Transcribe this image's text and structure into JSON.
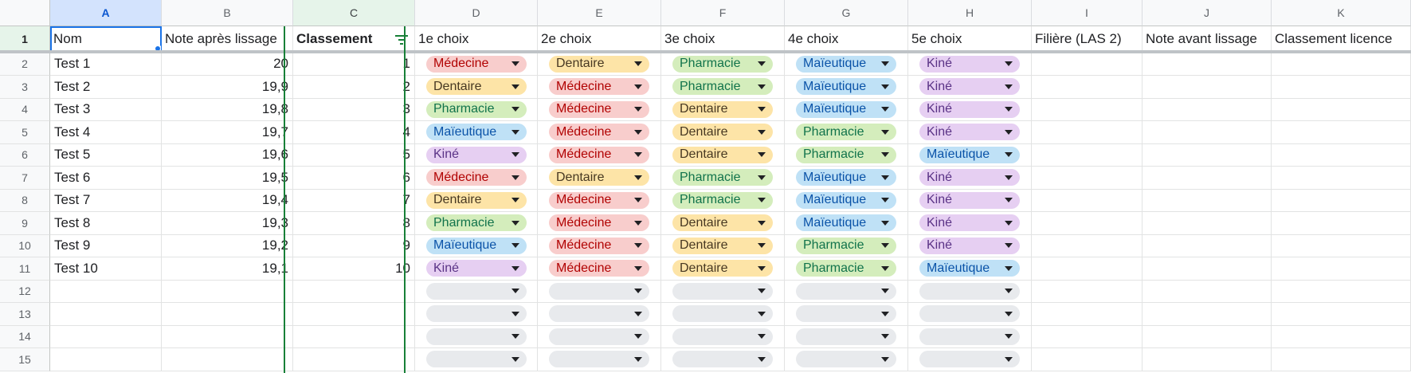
{
  "column_headers": [
    "A",
    "B",
    "C",
    "D",
    "E",
    "F",
    "G",
    "H",
    "I",
    "J",
    "K"
  ],
  "row_numbers": [
    "1",
    "2",
    "3",
    "4",
    "5",
    "6",
    "7",
    "8",
    "9",
    "10",
    "11",
    "12",
    "13",
    "14",
    "15"
  ],
  "header_row": [
    "Nom",
    "Note après lissage",
    "Classement",
    "1e choix",
    "2e choix",
    "3e choix",
    "4e choix",
    "5e choix",
    "Filière (LAS 2)",
    "Note avant lissage",
    "Classement licence"
  ],
  "rows": [
    {
      "nom": "Test 1",
      "note": "20",
      "classement": "1",
      "choix": [
        "Médecine",
        "Dentaire",
        "Pharmacie",
        "Maïeutique",
        "Kiné"
      ]
    },
    {
      "nom": "Test 2",
      "note": "19,9",
      "classement": "2",
      "choix": [
        "Dentaire",
        "Médecine",
        "Pharmacie",
        "Maïeutique",
        "Kiné"
      ]
    },
    {
      "nom": "Test 3",
      "note": "19,8",
      "classement": "3",
      "choix": [
        "Pharmacie",
        "Médecine",
        "Dentaire",
        "Maïeutique",
        "Kiné"
      ]
    },
    {
      "nom": "Test 4",
      "note": "19,7",
      "classement": "4",
      "choix": [
        "Maïeutique",
        "Médecine",
        "Dentaire",
        "Pharmacie",
        "Kiné"
      ]
    },
    {
      "nom": "Test 5",
      "note": "19,6",
      "classement": "5",
      "choix": [
        "Kiné",
        "Médecine",
        "Dentaire",
        "Pharmacie",
        "Maïeutique"
      ]
    },
    {
      "nom": "Test 6",
      "note": "19,5",
      "classement": "6",
      "choix": [
        "Médecine",
        "Dentaire",
        "Pharmacie",
        "Maïeutique",
        "Kiné"
      ]
    },
    {
      "nom": "Test 7",
      "note": "19,4",
      "classement": "7",
      "choix": [
        "Dentaire",
        "Médecine",
        "Pharmacie",
        "Maïeutique",
        "Kiné"
      ]
    },
    {
      "nom": "Test 8",
      "note": "19,3",
      "classement": "8",
      "choix": [
        "Pharmacie",
        "Médecine",
        "Dentaire",
        "Maïeutique",
        "Kiné"
      ]
    },
    {
      "nom": "Test 9",
      "note": "19,2",
      "classement": "9",
      "choix": [
        "Maïeutique",
        "Médecine",
        "Dentaire",
        "Pharmacie",
        "Kiné"
      ]
    },
    {
      "nom": "Test 10",
      "note": "19,1",
      "classement": "10",
      "choix": [
        "Kiné",
        "Médecine",
        "Dentaire",
        "Pharmacie",
        "Maïeutique"
      ]
    }
  ],
  "empty_dropdown_rows": 4,
  "chip_colors": {
    "Médecine": {
      "bg": "#f8cdcc",
      "fg": "#b10202"
    },
    "Dentaire": {
      "bg": "#fde4a7",
      "fg": "#473822"
    },
    "Pharmacie": {
      "bg": "#d4edbc",
      "fg": "#11734b"
    },
    "Maïeutique": {
      "bg": "#bfe1f6",
      "fg": "#0a53a8"
    },
    "Kiné": {
      "bg": "#e6cff2",
      "fg": "#5a3286"
    },
    "empty": {
      "bg": "#e8eaed",
      "fg": "#202124"
    }
  },
  "icons": {
    "filter": "filter-icon",
    "dropdown": "chevron-down-icon"
  }
}
